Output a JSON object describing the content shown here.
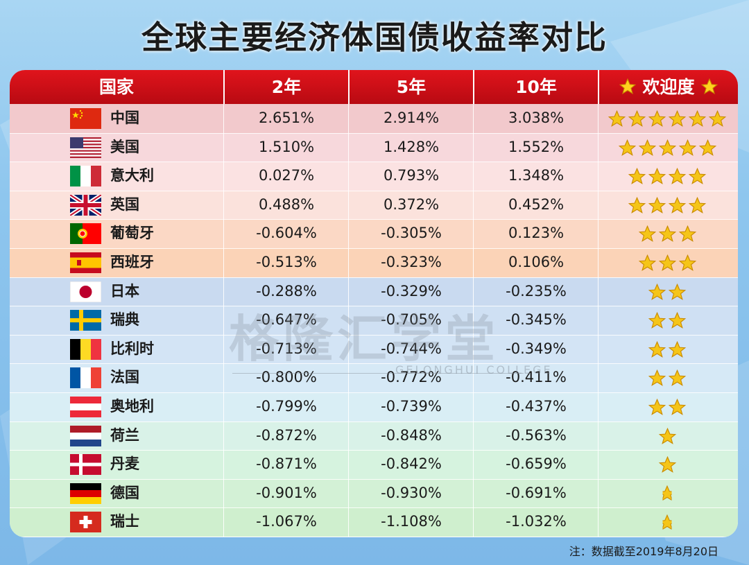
{
  "title": "全球主要经济体国债收益率对比",
  "headers": {
    "country": "国家",
    "y2": "2年",
    "y5": "5年",
    "y10": "10年",
    "popularity": "欢迎度"
  },
  "rows": [
    {
      "country": "中国",
      "flag": "china-flag-icon",
      "y2": "2.651%",
      "y5": "2.914%",
      "y10": "3.038%",
      "stars": 6
    },
    {
      "country": "美国",
      "flag": "usa-flag-icon",
      "y2": "1.510%",
      "y5": "1.428%",
      "y10": "1.552%",
      "stars": 5
    },
    {
      "country": "意大利",
      "flag": "italy-flag-icon",
      "y2": "0.027%",
      "y5": "0.793%",
      "y10": "1.348%",
      "stars": 4
    },
    {
      "country": "英国",
      "flag": "uk-flag-icon",
      "y2": "0.488%",
      "y5": "0.372%",
      "y10": "0.452%",
      "stars": 4
    },
    {
      "country": "葡萄牙",
      "flag": "portugal-flag-icon",
      "y2": "-0.604%",
      "y5": "-0.305%",
      "y10": "0.123%",
      "stars": 3
    },
    {
      "country": "西班牙",
      "flag": "spain-flag-icon",
      "y2": "-0.513%",
      "y5": "-0.323%",
      "y10": "0.106%",
      "stars": 3
    },
    {
      "country": "日本",
      "flag": "japan-flag-icon",
      "y2": "-0.288%",
      "y5": "-0.329%",
      "y10": "-0.235%",
      "stars": 2
    },
    {
      "country": "瑞典",
      "flag": "sweden-flag-icon",
      "y2": "-0.647%",
      "y5": "-0.705%",
      "y10": "-0.345%",
      "stars": 2
    },
    {
      "country": "比利时",
      "flag": "belgium-flag-icon",
      "y2": "-0.713%",
      "y5": "-0.744%",
      "y10": "-0.349%",
      "stars": 2
    },
    {
      "country": "法国",
      "flag": "france-flag-icon",
      "y2": "-0.800%",
      "y5": "-0.772%",
      "y10": "-0.411%",
      "stars": 2
    },
    {
      "country": "奥地利",
      "flag": "austria-flag-icon",
      "y2": "-0.799%",
      "y5": "-0.739%",
      "y10": "-0.437%",
      "stars": 2
    },
    {
      "country": "荷兰",
      "flag": "netherlands-flag-icon",
      "y2": "-0.872%",
      "y5": "-0.848%",
      "y10": "-0.563%",
      "stars": 1
    },
    {
      "country": "丹麦",
      "flag": "denmark-flag-icon",
      "y2": "-0.871%",
      "y5": "-0.842%",
      "y10": "-0.659%",
      "stars": 1
    },
    {
      "country": "德国",
      "flag": "germany-flag-icon",
      "y2": "-0.901%",
      "y5": "-0.930%",
      "y10": "-0.691%",
      "stars": 0.5
    },
    {
      "country": "瑞士",
      "flag": "switzerland-flag-icon",
      "y2": "-1.067%",
      "y5": "-1.108%",
      "y10": "-1.032%",
      "stars": 0.5
    }
  ],
  "row_colors": [
    "#f2c9cc",
    "#f7d8dc",
    "#fbe2e2",
    "#fbe2dc",
    "#fbd8c5",
    "#fbd3b7",
    "#c9daf0",
    "#cfe0f3",
    "#d3e4f5",
    "#d6e9f6",
    "#d9eef5",
    "#d9f2e8",
    "#d6f3df",
    "#d3f1d6",
    "#cfefce"
  ],
  "header_color": "#d0101a",
  "star_color": "#f5c518",
  "watermark": {
    "main": "格隆汇学堂",
    "sub": "GELONGHUI COLLEGE"
  },
  "note": "注：数据截至2019年8月20日",
  "chart_data": {
    "type": "table",
    "title": "全球主要经济体国债收益率对比",
    "columns": [
      "国家",
      "2年",
      "5年",
      "10年",
      "欢迎度"
    ],
    "rows": [
      [
        "中国",
        "2.651%",
        "2.914%",
        "3.038%",
        6
      ],
      [
        "美国",
        "1.510%",
        "1.428%",
        "1.552%",
        5
      ],
      [
        "意大利",
        "0.027%",
        "0.793%",
        "1.348%",
        4
      ],
      [
        "英国",
        "0.488%",
        "0.372%",
        "0.452%",
        4
      ],
      [
        "葡萄牙",
        "-0.604%",
        "-0.305%",
        "0.123%",
        3
      ],
      [
        "西班牙",
        "-0.513%",
        "-0.323%",
        "0.106%",
        3
      ],
      [
        "日本",
        "-0.288%",
        "-0.329%",
        "-0.235%",
        2
      ],
      [
        "瑞典",
        "-0.647%",
        "-0.705%",
        "-0.345%",
        2
      ],
      [
        "比利时",
        "-0.713%",
        "-0.744%",
        "-0.349%",
        2
      ],
      [
        "法国",
        "-0.800%",
        "-0.772%",
        "-0.411%",
        2
      ],
      [
        "奥地利",
        "-0.799%",
        "-0.739%",
        "-0.437%",
        2
      ],
      [
        "荷兰",
        "-0.872%",
        "-0.848%",
        "-0.563%",
        1
      ],
      [
        "丹麦",
        "-0.871%",
        "-0.842%",
        "-0.659%",
        1
      ],
      [
        "德国",
        "-0.901%",
        "-0.930%",
        "-0.691%",
        0.5
      ],
      [
        "瑞士",
        "-1.067%",
        "-1.108%",
        "-1.032%",
        0.5
      ]
    ]
  }
}
